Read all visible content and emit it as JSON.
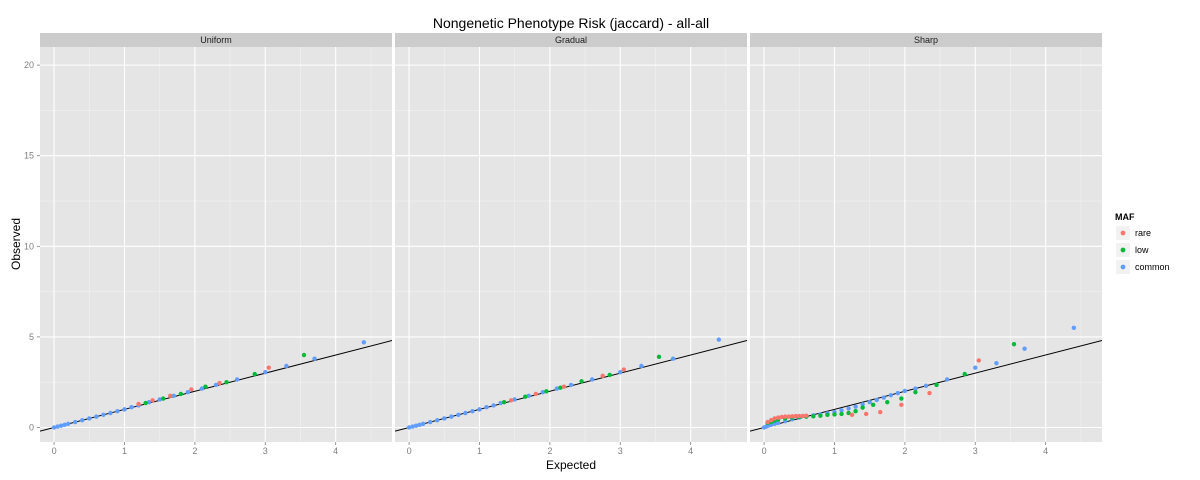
{
  "chart_data": {
    "type": "scatter",
    "title": "Nongenetic Phenotype Risk (jaccard) - all-all",
    "xlabel": "Expected",
    "ylabel": "Observed",
    "xlim": [
      -0.2,
      4.8
    ],
    "ylim": [
      -0.8,
      21
    ],
    "x_ticks": [
      0,
      1,
      2,
      3,
      4
    ],
    "y_ticks": [
      0,
      5,
      10,
      15,
      20
    ],
    "grid": true,
    "reference_line": {
      "intercept": 0,
      "slope": 1
    },
    "legend": {
      "title": "MAF",
      "position": "right",
      "entries": [
        {
          "label": "rare",
          "color": "#F8766D"
        },
        {
          "label": "low",
          "color": "#00BA38"
        },
        {
          "label": "common",
          "color": "#619CFF"
        }
      ]
    },
    "panels": [
      {
        "label": "Uniform",
        "series": [
          {
            "name": "rare",
            "color": "#F8766D",
            "points": [
              [
                1.2,
                1.3
              ],
              [
                1.4,
                1.5
              ],
              [
                1.65,
                1.75
              ],
              [
                1.95,
                2.1
              ],
              [
                2.35,
                2.45
              ],
              [
                3.05,
                3.3
              ]
            ]
          },
          {
            "name": "low",
            "color": "#00BA38",
            "points": [
              [
                1.3,
                1.35
              ],
              [
                1.55,
                1.6
              ],
              [
                1.8,
                1.85
              ],
              [
                2.15,
                2.25
              ],
              [
                2.45,
                2.5
              ],
              [
                2.85,
                2.95
              ],
              [
                3.55,
                4.0
              ]
            ]
          },
          {
            "name": "common",
            "color": "#619CFF",
            "points": [
              [
                0.0,
                0.0
              ],
              [
                0.05,
                0.05
              ],
              [
                0.1,
                0.1
              ],
              [
                0.15,
                0.15
              ],
              [
                0.2,
                0.2
              ],
              [
                0.3,
                0.3
              ],
              [
                0.4,
                0.4
              ],
              [
                0.5,
                0.5
              ],
              [
                0.6,
                0.6
              ],
              [
                0.7,
                0.7
              ],
              [
                0.8,
                0.8
              ],
              [
                0.9,
                0.9
              ],
              [
                1.0,
                1.0
              ],
              [
                1.1,
                1.12
              ],
              [
                1.2,
                1.22
              ],
              [
                1.35,
                1.4
              ],
              [
                1.5,
                1.55
              ],
              [
                1.7,
                1.75
              ],
              [
                1.9,
                1.95
              ],
              [
                2.1,
                2.15
              ],
              [
                2.3,
                2.35
              ],
              [
                2.6,
                2.65
              ],
              [
                3.0,
                3.05
              ],
              [
                3.3,
                3.4
              ],
              [
                3.7,
                3.8
              ],
              [
                4.4,
                4.7
              ]
            ]
          }
        ]
      },
      {
        "label": "Gradual",
        "series": [
          {
            "name": "rare",
            "color": "#F8766D",
            "points": [
              [
                1.45,
                1.5
              ],
              [
                1.8,
                1.85
              ],
              [
                2.2,
                2.25
              ],
              [
                2.75,
                2.85
              ],
              [
                3.05,
                3.2
              ]
            ]
          },
          {
            "name": "low",
            "color": "#00BA38",
            "points": [
              [
                1.35,
                1.4
              ],
              [
                1.65,
                1.7
              ],
              [
                1.95,
                2.0
              ],
              [
                2.15,
                2.2
              ],
              [
                2.45,
                2.55
              ],
              [
                2.85,
                2.9
              ],
              [
                3.55,
                3.9
              ]
            ]
          },
          {
            "name": "common",
            "color": "#619CFF",
            "points": [
              [
                0.0,
                0.0
              ],
              [
                0.05,
                0.05
              ],
              [
                0.1,
                0.1
              ],
              [
                0.15,
                0.15
              ],
              [
                0.2,
                0.2
              ],
              [
                0.3,
                0.3
              ],
              [
                0.4,
                0.4
              ],
              [
                0.5,
                0.5
              ],
              [
                0.6,
                0.6
              ],
              [
                0.7,
                0.7
              ],
              [
                0.8,
                0.8
              ],
              [
                0.9,
                0.9
              ],
              [
                1.0,
                1.0
              ],
              [
                1.1,
                1.12
              ],
              [
                1.2,
                1.22
              ],
              [
                1.3,
                1.35
              ],
              [
                1.5,
                1.55
              ],
              [
                1.7,
                1.75
              ],
              [
                1.9,
                1.95
              ],
              [
                2.1,
                2.15
              ],
              [
                2.3,
                2.35
              ],
              [
                2.6,
                2.65
              ],
              [
                3.0,
                3.05
              ],
              [
                3.3,
                3.4
              ],
              [
                3.75,
                3.8
              ],
              [
                4.4,
                4.85
              ]
            ]
          }
        ]
      },
      {
        "label": "Sharp",
        "series": [
          {
            "name": "rare",
            "color": "#F8766D",
            "points": [
              [
                0.05,
                0.3
              ],
              [
                0.1,
                0.4
              ],
              [
                0.15,
                0.5
              ],
              [
                0.2,
                0.55
              ],
              [
                0.25,
                0.58
              ],
              [
                0.3,
                0.6
              ],
              [
                0.35,
                0.6
              ],
              [
                0.4,
                0.62
              ],
              [
                0.45,
                0.63
              ],
              [
                0.5,
                0.63
              ],
              [
                0.55,
                0.64
              ],
              [
                0.6,
                0.65
              ],
              [
                1.25,
                0.7
              ],
              [
                1.45,
                0.75
              ],
              [
                1.65,
                0.85
              ],
              [
                1.95,
                1.25
              ],
              [
                2.35,
                1.9
              ],
              [
                3.05,
                3.7
              ]
            ]
          },
          {
            "name": "low",
            "color": "#00BA38",
            "points": [
              [
                0.05,
                0.25
              ],
              [
                0.1,
                0.3
              ],
              [
                0.15,
                0.38
              ],
              [
                0.2,
                0.44
              ],
              [
                0.3,
                0.5
              ],
              [
                0.4,
                0.55
              ],
              [
                0.5,
                0.58
              ],
              [
                0.6,
                0.6
              ],
              [
                0.7,
                0.62
              ],
              [
                0.8,
                0.65
              ],
              [
                0.9,
                0.7
              ],
              [
                1.0,
                0.72
              ],
              [
                1.1,
                0.75
              ],
              [
                1.2,
                0.8
              ],
              [
                1.3,
                0.9
              ],
              [
                1.4,
                1.1
              ],
              [
                1.55,
                1.25
              ],
              [
                1.75,
                1.4
              ],
              [
                1.95,
                1.6
              ],
              [
                2.15,
                1.95
              ],
              [
                2.45,
                2.35
              ],
              [
                2.85,
                2.95
              ],
              [
                3.55,
                4.6
              ]
            ]
          },
          {
            "name": "common",
            "color": "#619CFF",
            "points": [
              [
                0.0,
                0.0
              ],
              [
                0.03,
                0.05
              ],
              [
                0.06,
                0.1
              ],
              [
                0.1,
                0.15
              ],
              [
                0.15,
                0.2
              ],
              [
                0.2,
                0.25
              ],
              [
                0.3,
                0.35
              ],
              [
                0.4,
                0.45
              ],
              [
                0.5,
                0.55
              ],
              [
                0.6,
                0.62
              ],
              [
                0.7,
                0.67
              ],
              [
                0.8,
                0.72
              ],
              [
                0.9,
                0.78
              ],
              [
                1.0,
                0.85
              ],
              [
                1.1,
                0.95
              ],
              [
                1.2,
                1.05
              ],
              [
                1.3,
                1.15
              ],
              [
                1.4,
                1.28
              ],
              [
                1.5,
                1.4
              ],
              [
                1.6,
                1.52
              ],
              [
                1.7,
                1.65
              ],
              [
                1.8,
                1.78
              ],
              [
                1.9,
                1.9
              ],
              [
                2.0,
                2.02
              ],
              [
                2.15,
                2.15
              ],
              [
                2.3,
                2.3
              ],
              [
                2.6,
                2.65
              ],
              [
                3.0,
                3.3
              ],
              [
                3.3,
                3.55
              ],
              [
                3.7,
                4.35
              ],
              [
                4.4,
                5.5
              ]
            ]
          }
        ]
      }
    ]
  }
}
